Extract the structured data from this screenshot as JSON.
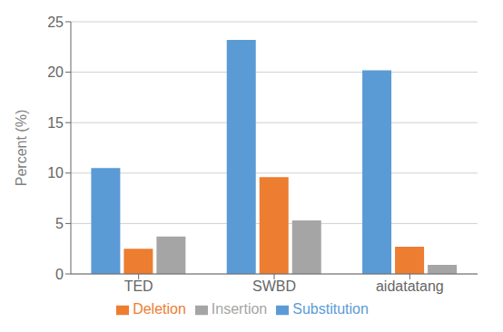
{
  "chart_data": {
    "type": "bar",
    "categories": [
      "TED",
      "SWBD",
      "aidatatang"
    ],
    "series": [
      {
        "name": "Substitution",
        "color": "#5B9BD5",
        "values": [
          10.5,
          23.2,
          20.2
        ]
      },
      {
        "name": "Deletion",
        "color": "#ED7D31",
        "values": [
          2.5,
          9.6,
          2.7
        ]
      },
      {
        "name": "Insertion",
        "color": "#A5A5A5",
        "values": [
          3.7,
          5.3,
          0.9
        ]
      }
    ],
    "ylabel": "Percent (%)",
    "ylim": [
      0,
      25
    ],
    "yticks": [
      0,
      5,
      10,
      15,
      20,
      25
    ],
    "grid": true,
    "legend": "bottom"
  }
}
